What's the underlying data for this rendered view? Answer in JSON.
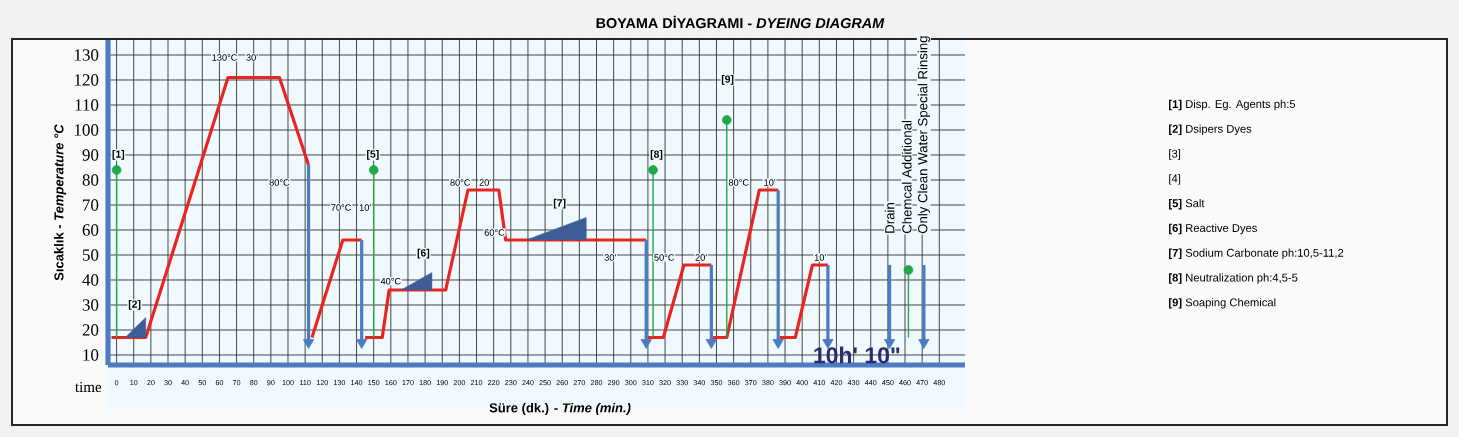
{
  "chart_data": {
    "type": "line",
    "title": "BOYAMA DİYAGRAMI   -   *DYEING DIAGRAM*",
    "xlabel": "Süre (dk.)  -  *Time (min.)*",
    "ylabel": "Sıcaklık  -  *Temperature   °C*",
    "xlim": [
      -5,
      495
    ],
    "ylim": [
      6,
      136
    ],
    "xticks": [
      0,
      10,
      20,
      30,
      40,
      50,
      60,
      70,
      80,
      90,
      100,
      110,
      120,
      130,
      140,
      150,
      160,
      170,
      180,
      190,
      200,
      210,
      220,
      230,
      240,
      250,
      260,
      270,
      280,
      290,
      300,
      310,
      320,
      330,
      340,
      350,
      360,
      370,
      380,
      390,
      400,
      410,
      420,
      430,
      440,
      450,
      460,
      470,
      480
    ],
    "yticks": [
      10,
      20,
      30,
      40,
      50,
      60,
      70,
      80,
      90,
      100,
      110,
      120,
      130
    ],
    "grid": true,
    "series": [
      {
        "color": "#e8261f",
        "marker": "none",
        "x": [
          -3,
          17,
          65,
          95,
          112,
          113,
          114,
          132,
          143,
          144,
          145,
          155,
          159,
          192,
          205,
          223,
          227,
          309,
          309.5,
          310,
          319,
          331,
          347,
          347.5,
          348,
          356,
          375,
          386,
          386.5,
          387,
          396,
          406,
          415
        ],
        "values": [
          17,
          17,
          121,
          121,
          86,
          null,
          17,
          56,
          56,
          null,
          17,
          17,
          36,
          36,
          76,
          76,
          56,
          56,
          null,
          17,
          17,
          46,
          46,
          null,
          17,
          17,
          76,
          76,
          null,
          17,
          17,
          46,
          46
        ]
      },
      {
        "color": "#4b7cc2",
        "marker": "triangle",
        "x": [
          112,
          112,
          113,
          143,
          143,
          144,
          309,
          309,
          310,
          347,
          347,
          348,
          386,
          386,
          387,
          415,
          415,
          416,
          451,
          451,
          452,
          471,
          471
        ],
        "values": [
          86,
          15,
          null,
          56,
          15,
          null,
          56,
          15,
          null,
          46,
          15,
          null,
          76,
          15,
          null,
          46,
          15,
          null,
          46,
          15,
          null,
          46,
          15
        ]
      },
      {
        "color": "#22a84a",
        "marker": "circle",
        "x": [
          0,
          0,
          1,
          150,
          150,
          151,
          313,
          313,
          314,
          356,
          356,
          357,
          462,
          462
        ],
        "values": [
          84,
          17,
          null,
          84,
          17,
          null,
          84,
          17,
          null,
          104,
          17,
          null,
          44,
          17
        ]
      },
      {
        "type": "area",
        "color": "#3e5c98",
        "x": [
          5,
          17,
          17,
          18,
          166,
          184,
          184,
          185,
          239,
          274,
          274
        ],
        "values": [
          17,
          25,
          17,
          null,
          36,
          43,
          36,
          null,
          56,
          65,
          56
        ]
      }
    ],
    "annotations": [
      "time",
      "**[1]** Disp. Eg. Agents ph:5",
      "**[2]** Dsipers Dyes",
      "[3]",
      "[4]",
      "**[5]** Salt",
      "**[6]** Reactive Dyes",
      "**[7]** Sodium Carbonate ph:10,5-11,2",
      "**[8]** Neutralization ph:4,5-5",
      "**[9]** Soaping Chemical",
      "130°C",
      "30'",
      "80°C",
      "70°C",
      "10'",
      "40°C",
      "80°C",
      "20'",
      "60°C",
      "30'",
      "50°C",
      "20'",
      "80°C",
      "10'",
      "10'",
      "[1]",
      "[2]",
      "[5]",
      "[6]",
      "[7]",
      "[8]",
      "[9]",
      "Drain",
      "Chemcal Additional",
      "Only Clean Water Special Rinsing",
      "10h' 10\""
    ]
  }
}
